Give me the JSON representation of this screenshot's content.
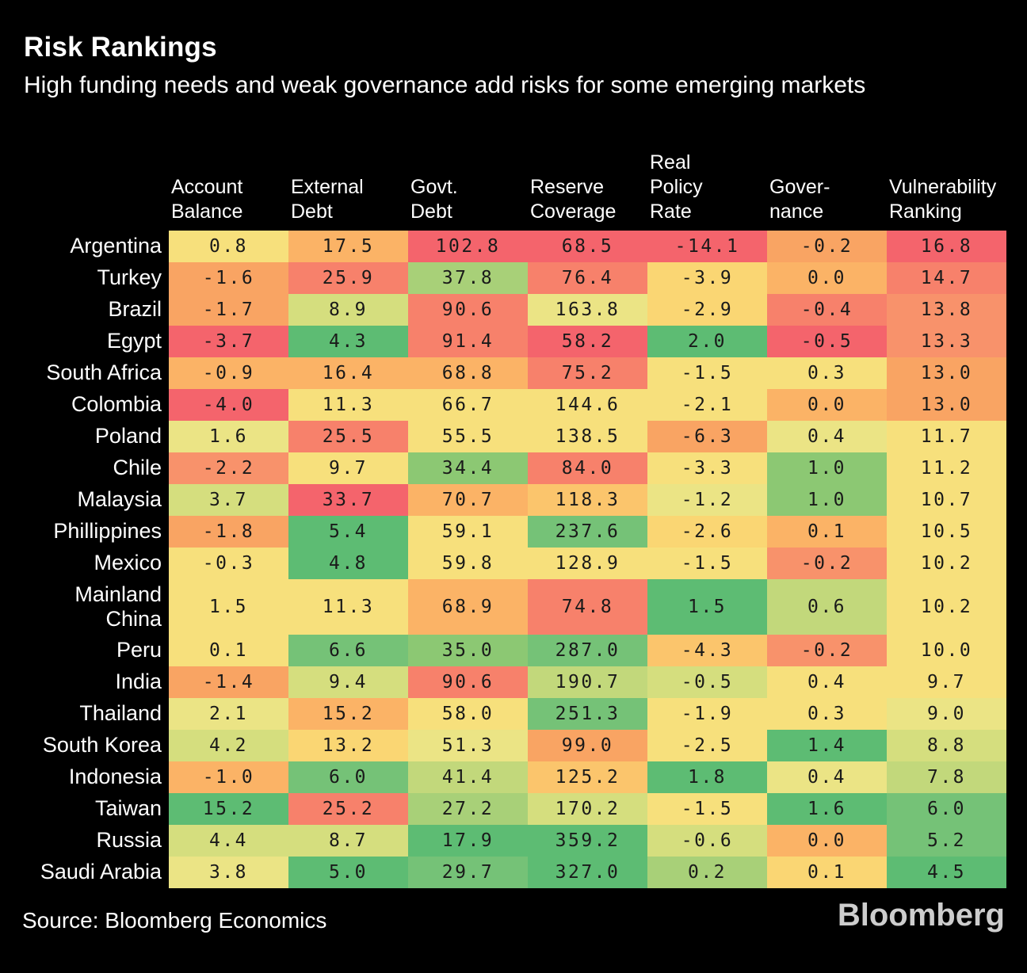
{
  "title": "Risk Rankings",
  "subtitle": "High funding needs and weak governance add risks for some emerging markets",
  "source": "Source: Bloomberg Economics",
  "logo_text": "Bloomberg",
  "colors": {
    "background": "#000000",
    "text": "#FFFFFF",
    "cell_text": "#1A1A1A",
    "logo_gray": "#CDCDCD"
  },
  "palette": {
    "c1": "#F4646C",
    "c2": "#F7816B",
    "c3": "#F8926B",
    "c4": "#F9A463",
    "c5": "#FBB366",
    "c6": "#FBC56C",
    "c7": "#FAD673",
    "c8": "#F7E07C",
    "c9": "#EBE485",
    "c10": "#D5DE7E",
    "c11": "#C2D87B",
    "c12": "#A8D078",
    "c13": "#8CC873",
    "c14": "#75C277",
    "c15": "#5DBC73"
  },
  "chart_data": {
    "type": "heatmap",
    "title": "Risk Rankings",
    "subtitle": "High funding needs and weak governance add risks for some emerging markets",
    "legend_position": "none",
    "color_scale": "red = high risk, yellow = medium, green = low risk",
    "columns": [
      "Account\nBalance",
      "External\nDebt",
      "Govt.\nDebt",
      "Reserve\nCoverage",
      "Real\nPolicy\nRate",
      "Gover-\nnance",
      "Vulnerability\nRanking"
    ],
    "rows": [
      {
        "label": "Argentina",
        "values": [
          "0.8",
          "17.5",
          "102.8",
          "68.5",
          "-14.1",
          "-0.2",
          "16.8"
        ],
        "colors": [
          "c8",
          "c5",
          "c1",
          "c1",
          "c1",
          "c4",
          "c1"
        ]
      },
      {
        "label": "Turkey",
        "values": [
          "-1.6",
          "25.9",
          "37.8",
          "76.4",
          "-3.9",
          "0.0",
          "14.7"
        ],
        "colors": [
          "c4",
          "c2",
          "c12",
          "c2",
          "c7",
          "c5",
          "c2"
        ]
      },
      {
        "label": "Brazil",
        "values": [
          "-1.7",
          "8.9",
          "90.6",
          "163.8",
          "-2.9",
          "-0.4",
          "13.8"
        ],
        "colors": [
          "c4",
          "c10",
          "c2",
          "c9",
          "c7",
          "c2",
          "c3"
        ]
      },
      {
        "label": "Egypt",
        "values": [
          "-3.7",
          "4.3",
          "91.4",
          "58.2",
          "2.0",
          "-0.5",
          "13.3"
        ],
        "colors": [
          "c1",
          "c15",
          "c2",
          "c1",
          "c15",
          "c1",
          "c3"
        ]
      },
      {
        "label": "South Africa",
        "values": [
          "-0.9",
          "16.4",
          "68.8",
          "75.2",
          "-1.5",
          "0.3",
          "13.0"
        ],
        "colors": [
          "c5",
          "c5",
          "c5",
          "c2",
          "c8",
          "c8",
          "c4"
        ]
      },
      {
        "label": "Colombia",
        "values": [
          "-4.0",
          "11.3",
          "66.7",
          "144.6",
          "-2.1",
          "0.0",
          "13.0"
        ],
        "colors": [
          "c1",
          "c8",
          "c8",
          "c8",
          "c8",
          "c5",
          "c4"
        ]
      },
      {
        "label": "Poland",
        "values": [
          "1.6",
          "25.5",
          "55.5",
          "138.5",
          "-6.3",
          "0.4",
          "11.7"
        ],
        "colors": [
          "c9",
          "c2",
          "c8",
          "c8",
          "c4",
          "c9",
          "c8"
        ]
      },
      {
        "label": "Chile",
        "values": [
          "-2.2",
          "9.7",
          "34.4",
          "84.0",
          "-3.3",
          "1.0",
          "11.2"
        ],
        "colors": [
          "c3",
          "c8",
          "c13",
          "c2",
          "c8",
          "c13",
          "c8"
        ]
      },
      {
        "label": "Malaysia",
        "values": [
          "3.7",
          "33.7",
          "70.7",
          "118.3",
          "-1.2",
          "1.0",
          "10.7"
        ],
        "colors": [
          "c10",
          "c1",
          "c5",
          "c6",
          "c9",
          "c13",
          "c8"
        ]
      },
      {
        "label": "Phillippines",
        "values": [
          "-1.8",
          "5.4",
          "59.1",
          "237.6",
          "-2.6",
          "0.1",
          "10.5"
        ],
        "colors": [
          "c4",
          "c15",
          "c8",
          "c14",
          "c7",
          "c5",
          "c8"
        ]
      },
      {
        "label": "Mexico",
        "values": [
          "-0.3",
          "4.8",
          "59.8",
          "128.9",
          "-1.5",
          "-0.2",
          "10.2"
        ],
        "colors": [
          "c8",
          "c15",
          "c8",
          "c8",
          "c8",
          "c3",
          "c8"
        ]
      },
      {
        "label": "Mainland\nChina",
        "values": [
          "1.5",
          "11.3",
          "68.9",
          "74.8",
          "1.5",
          "0.6",
          "10.2"
        ],
        "colors": [
          "c8",
          "c8",
          "c5",
          "c2",
          "c15",
          "c11",
          "c8"
        ]
      },
      {
        "label": "Peru",
        "values": [
          "0.1",
          "6.6",
          "35.0",
          "287.0",
          "-4.3",
          "-0.2",
          "10.0"
        ],
        "colors": [
          "c8",
          "c14",
          "c13",
          "c14",
          "c6",
          "c3",
          "c8"
        ]
      },
      {
        "label": "India",
        "values": [
          "-1.4",
          "9.4",
          "90.6",
          "190.7",
          "-0.5",
          "0.4",
          "9.7"
        ],
        "colors": [
          "c4",
          "c10",
          "c2",
          "c11",
          "c10",
          "c8",
          "c8"
        ]
      },
      {
        "label": "Thailand",
        "values": [
          "2.1",
          "15.2",
          "58.0",
          "251.3",
          "-1.9",
          "0.3",
          "9.0"
        ],
        "colors": [
          "c9",
          "c5",
          "c8",
          "c14",
          "c8",
          "c8",
          "c9"
        ]
      },
      {
        "label": "South Korea",
        "values": [
          "4.2",
          "13.2",
          "51.3",
          "99.0",
          "-2.5",
          "1.4",
          "8.8"
        ],
        "colors": [
          "c10",
          "c7",
          "c9",
          "c4",
          "c8",
          "c15",
          "c10"
        ]
      },
      {
        "label": "Indonesia",
        "values": [
          "-1.0",
          "6.0",
          "41.4",
          "125.2",
          "1.8",
          "0.4",
          "7.8"
        ],
        "colors": [
          "c5",
          "c14",
          "c11",
          "c6",
          "c15",
          "c9",
          "c11"
        ]
      },
      {
        "label": "Taiwan",
        "values": [
          "15.2",
          "25.2",
          "27.2",
          "170.2",
          "-1.5",
          "1.6",
          "6.0"
        ],
        "colors": [
          "c15",
          "c2",
          "c12",
          "c10",
          "c8",
          "c15",
          "c14"
        ]
      },
      {
        "label": "Russia",
        "values": [
          "4.4",
          "8.7",
          "17.9",
          "359.2",
          "-0.6",
          "0.0",
          "5.2"
        ],
        "colors": [
          "c10",
          "c10",
          "c15",
          "c15",
          "c10",
          "c5",
          "c14"
        ]
      },
      {
        "label": "Saudi Arabia",
        "values": [
          "3.8",
          "5.0",
          "29.7",
          "327.0",
          "0.2",
          "0.1",
          "4.5"
        ],
        "colors": [
          "c9",
          "c15",
          "c14",
          "c15",
          "c12",
          "c7",
          "c15"
        ]
      }
    ],
    "source": "Source: Bloomberg Economics"
  }
}
